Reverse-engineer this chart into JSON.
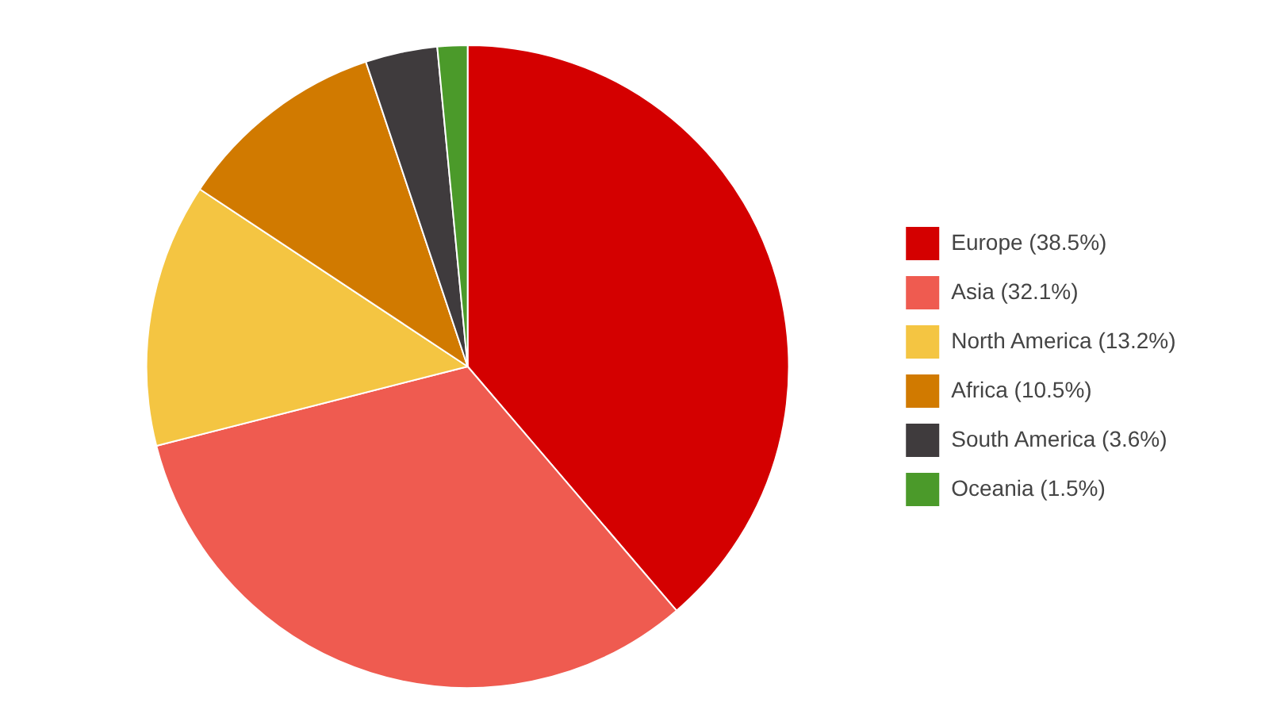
{
  "chart_data": {
    "type": "pie",
    "categories": [
      "Europe (38.5%)",
      "Asia (32.1%)",
      "North America (13.2%)",
      "Africa (10.5%)",
      "South America (3.6%)",
      "Oceania (1.5%)"
    ],
    "values": [
      38.5,
      32.1,
      13.2,
      10.5,
      3.6,
      1.5
    ],
    "colors": [
      "#d40000",
      "#ef5b50",
      "#f4c542",
      "#d17a00",
      "#3f3b3d",
      "#4b9a2a"
    ],
    "legend": "right"
  }
}
